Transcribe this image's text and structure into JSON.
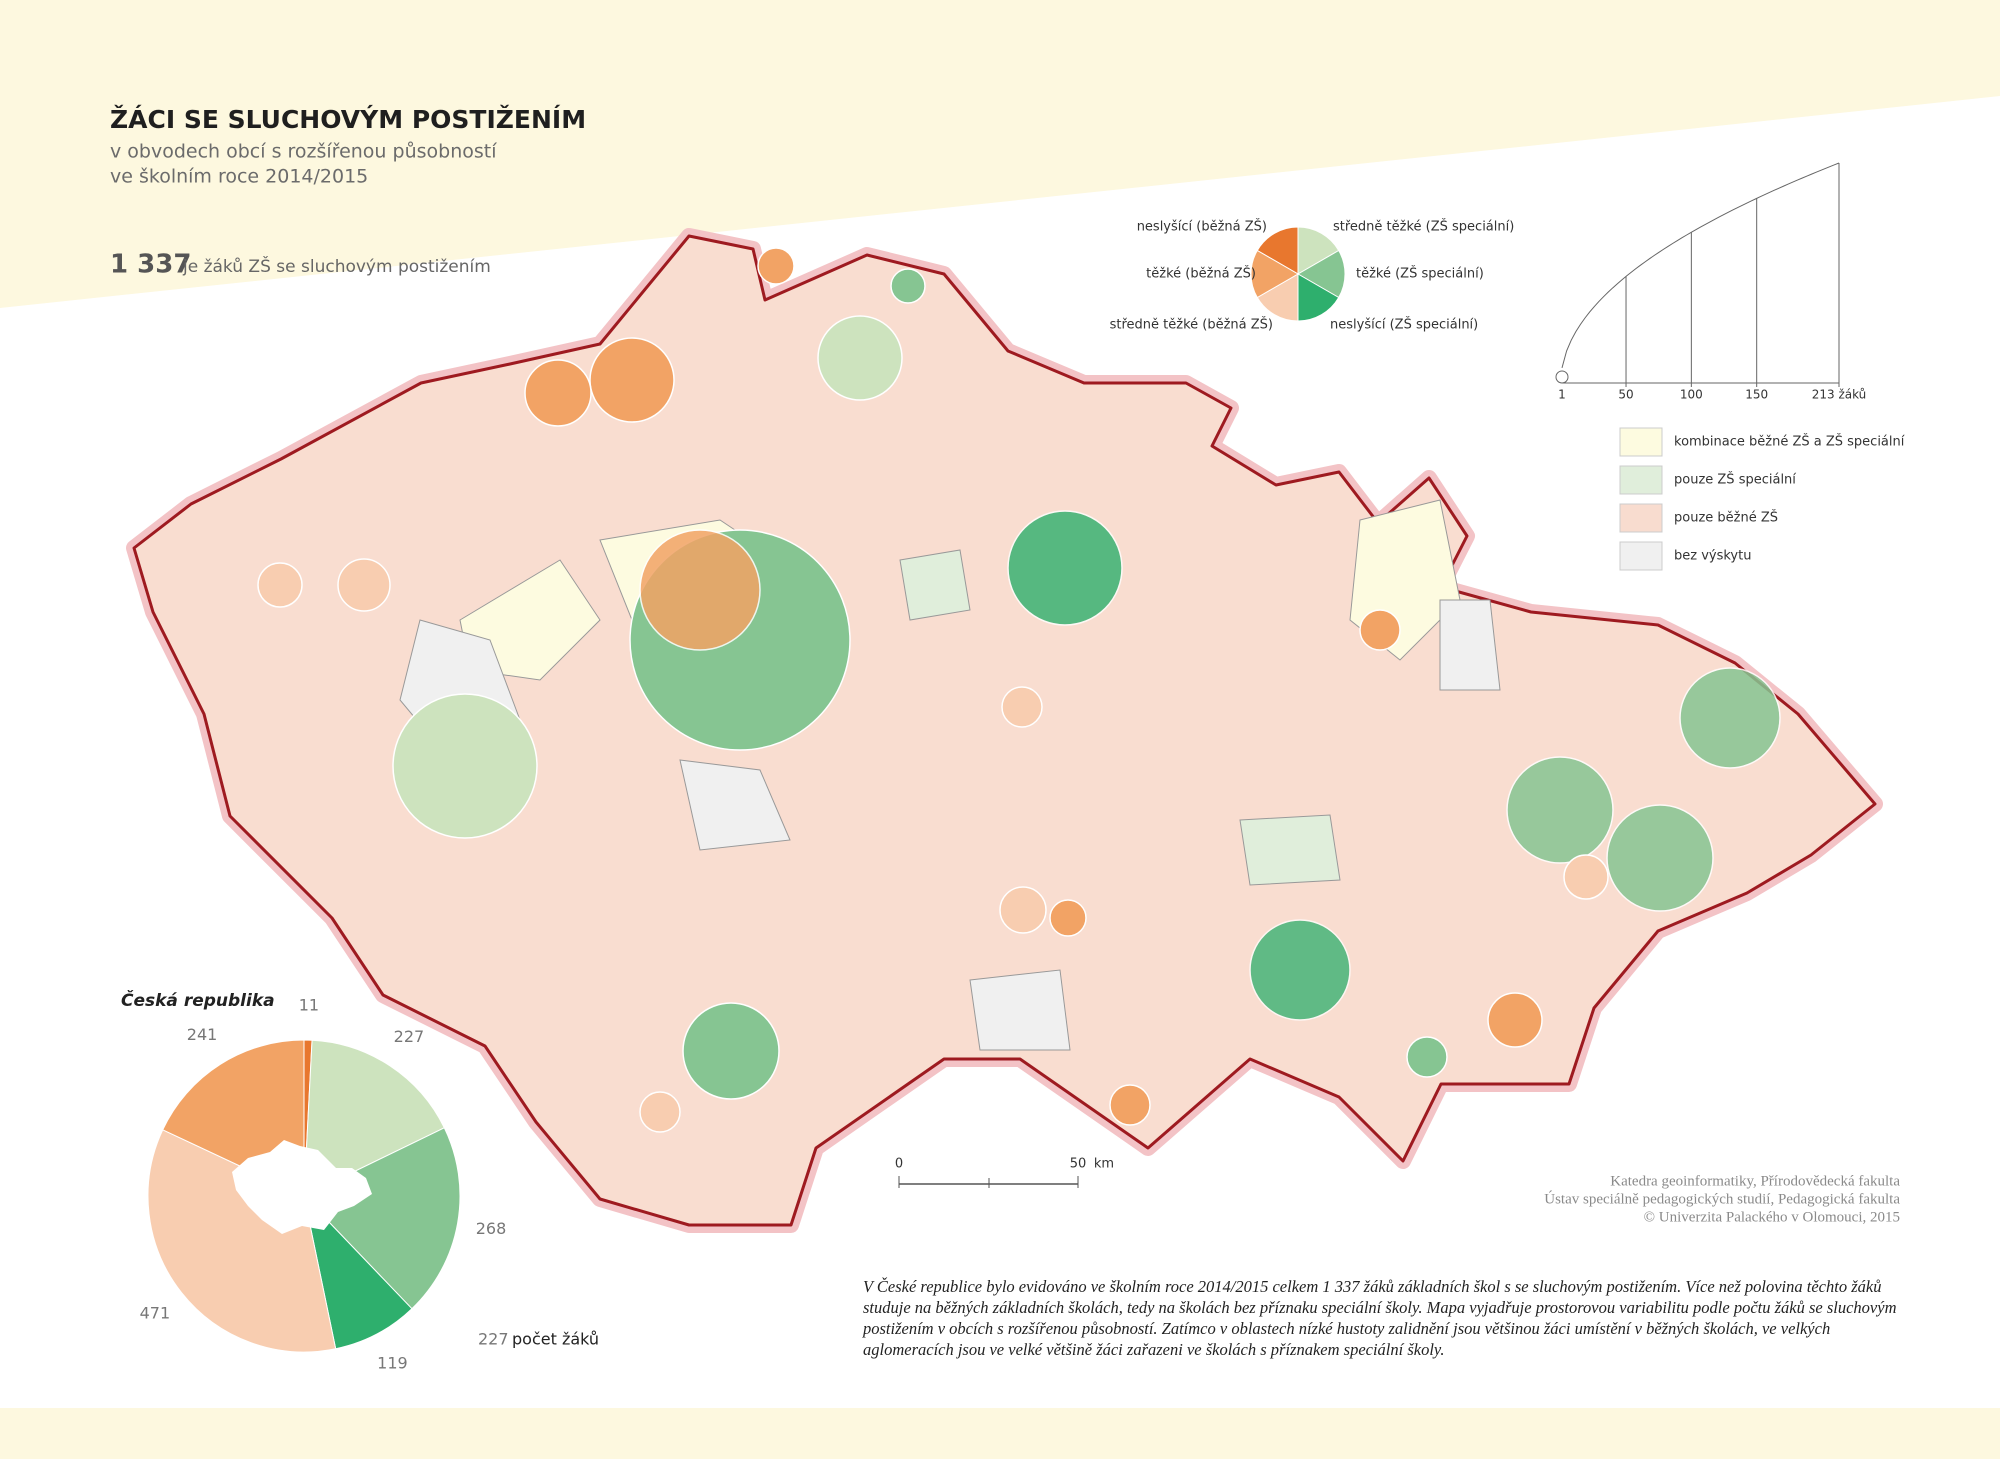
{
  "header": {
    "title": "ŽÁCI SE SLUCHOVÝM POSTIŽENÍM",
    "subtitle_lines": [
      "v obvodech obcí s rozšířenou působností",
      "ve školním roce 2014/2015"
    ],
    "total": {
      "value": "1 337",
      "label": "je žáků ZŠ se sluchovým postižením"
    }
  },
  "chart_data": {
    "type": "pie",
    "title": "Česká republika",
    "categories": [
      "neslyšící (běžná ZŠ)",
      "středně těžké (ZŠ speciální)",
      "těžké (ZŠ speciální)",
      "neslyšící (ZŠ speciální)",
      "středně těžké (běžná ZŠ)",
      "těžké (běžná ZŠ)"
    ],
    "colors": [
      "#e8772e",
      "#cde3be",
      "#86c592",
      "#2eaf6d",
      "#f8cdb0",
      "#f2a365"
    ],
    "values": [
      11,
      227,
      268,
      119,
      471,
      241
    ],
    "value_label_note": {
      "example": "227",
      "label": "počet žáků"
    }
  },
  "size_legend": {
    "ticks": [
      1,
      50,
      100,
      150,
      {
        "value": 213,
        "label": "213 žáků"
      }
    ]
  },
  "region_legend": [
    {
      "label": "kombinace běžné ZŠ a ZŠ speciální",
      "color": "#fdfbe0"
    },
    {
      "label": "pouze ZŠ speciální",
      "color": "#e0eedb"
    },
    {
      "label": "pouze běžné ZŠ",
      "color": "#f8dccf"
    },
    {
      "label": "bez výskytu",
      "color": "#f0f0f0"
    }
  ],
  "scale_bar": {
    "ticks": [
      0,
      50
    ],
    "unit": "km"
  },
  "credits": [
    "Katedra geoinformatiky, Přírodovědecká fakulta",
    "Ústav speciálně pedagogických studií, Pedagogická fakulta",
    "© Univerzita Palackého v Olomouci, 2015"
  ],
  "description": "V České republice bylo evidováno ve školním roce 2014/2015 celkem 1 337 žáků základních škol s se sluchovým postižením. Více než polovina těchto žáků studuje na běžných základních školách, tedy na školách bez příznaku speciální školy. Mapa vyjadřuje prostorovou variabilitu podle počtu žáků se sluchovým postižením v obcích s rozšířenou působností. Zatímco v oblastech nízké hustoty zalidnění jsou většinou žáci umístění v běžných školách, ve velkých aglomeracích jsou ve velké většině žáci zařazeni ve školách s příznakem speciální školy."
}
